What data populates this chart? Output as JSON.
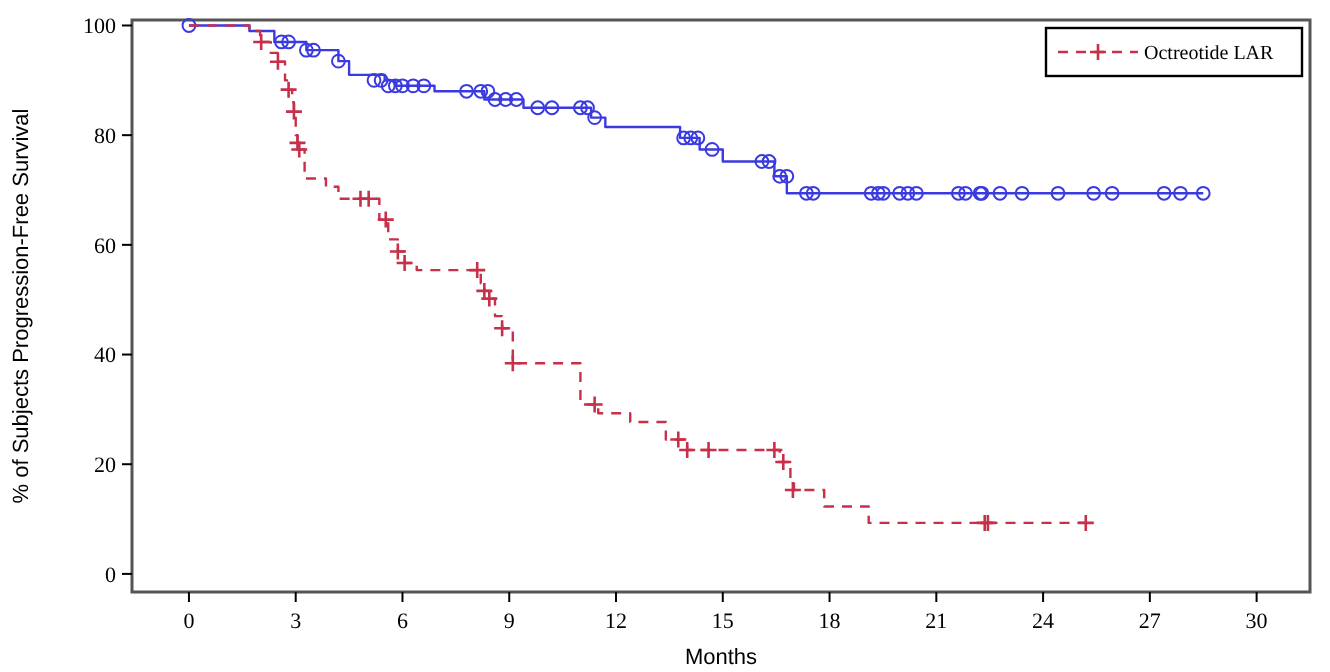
{
  "chart_data": {
    "type": "step",
    "xlabel": "Months",
    "ylabel": "% of Subjects Progression-Free Survival",
    "xlim": [
      -1.6,
      31.5
    ],
    "ylim": [
      -3.3,
      101
    ],
    "xticks": [
      0,
      3,
      6,
      9,
      12,
      15,
      18,
      21,
      24,
      27,
      30
    ],
    "yticks": [
      0,
      20,
      40,
      60,
      80,
      100
    ],
    "grid": false,
    "legend": "top right",
    "series": [
      {
        "color": "#3a3ae0",
        "line_style": "solid",
        "marker": "none",
        "x": [
          0,
          1.7,
          2.4,
          3.3,
          4.2,
          4.5,
          5.5,
          5.8,
          6.9,
          8.3,
          9.4,
          11.3,
          11.7,
          13.8,
          14.35,
          15.0,
          16.45,
          16.8,
          28.5
        ],
        "values": [
          100,
          99,
          97,
          95.5,
          93.5,
          91,
          90,
          89,
          88,
          86.5,
          85,
          83.2,
          81.5,
          79.5,
          77.4,
          75.2,
          72.5,
          69.4,
          69.4
        ]
      },
      {
        "type": "scatter",
        "color": "#3a3ae0",
        "marker": "circle",
        "x": [
          0,
          2.6,
          2.8,
          3.3,
          3.5,
          4.2,
          5.2,
          5.4,
          5.6,
          5.8,
          6.0,
          6.3,
          6.6,
          7.8,
          8.2,
          8.4,
          8.6,
          8.9,
          9.2,
          9.8,
          10.2,
          11.0,
          11.2,
          11.4,
          13.9,
          14.1,
          14.3,
          14.7,
          16.1,
          16.3,
          16.6,
          16.8,
          17.35,
          17.54,
          19.17,
          19.37,
          19.51,
          19.97,
          20.2,
          20.44,
          21.62,
          21.82,
          22.23,
          22.28,
          22.79,
          23.41,
          24.42,
          25.42,
          25.94,
          27.4,
          27.86,
          28.5
        ],
        "values": [
          100,
          97,
          97,
          95.5,
          95.5,
          93.5,
          90,
          90,
          89,
          89,
          89,
          89,
          89,
          88,
          88,
          88,
          86.5,
          86.5,
          86.5,
          85,
          85,
          85,
          85,
          83.2,
          79.5,
          79.5,
          79.5,
          77.4,
          75.2,
          75.2,
          72.5,
          72.5,
          69.4,
          69.4,
          69.4,
          69.4,
          69.4,
          69.4,
          69.4,
          69.4,
          69.4,
          69.4,
          69.4,
          69.4,
          69.4,
          69.4,
          69.4,
          69.4,
          69.4,
          69.4,
          69.4,
          69.4
        ]
      },
      {
        "name": "Octreotide LAR",
        "color": "#c8304a",
        "line_style": "dashed",
        "marker": "none",
        "x": [
          0,
          1.7,
          2.0,
          2.3,
          2.5,
          2.7,
          2.8,
          2.9,
          2.95,
          3.0,
          3.05,
          3.1,
          3.25,
          3.85,
          4.2,
          5.35,
          5.6,
          5.87,
          6.06,
          6.4,
          8.2,
          8.3,
          8.44,
          8.6,
          8.8,
          9.1,
          11.0,
          11.5,
          12.4,
          13.4,
          14.0,
          16.6,
          16.9,
          17.0,
          17.85,
          19.1,
          25.2
        ],
        "values": [
          100,
          99,
          97,
          95,
          93.4,
          90,
          88.3,
          86,
          84.3,
          80,
          78.6,
          77.4,
          72.1,
          70.6,
          68.4,
          64.6,
          61,
          58.8,
          56.7,
          55.4,
          53,
          51.6,
          50.2,
          47,
          44.8,
          38.4,
          30.9,
          29.3,
          27.7,
          24.5,
          22.6,
          20.4,
          17,
          15.3,
          12.3,
          9.3,
          9.3
        ]
      },
      {
        "type": "scatter",
        "color": "#c8304a",
        "marker": "cross",
        "x": [
          2.03,
          2.5,
          2.8,
          2.95,
          3.05,
          3.1,
          4.82,
          5.05,
          5.53,
          5.87,
          6.06,
          8.1,
          8.3,
          8.44,
          8.8,
          9.1,
          11.4,
          13.75,
          14.0,
          14.6,
          16.45,
          16.7,
          16.97,
          22.36,
          22.45,
          25.2
        ],
        "values": [
          97,
          93.4,
          88.3,
          84.3,
          78.6,
          77.4,
          68.4,
          68.4,
          64.6,
          58.8,
          56.7,
          55.4,
          51.6,
          50.2,
          44.8,
          38.4,
          30.9,
          24.5,
          22.6,
          22.6,
          22.6,
          20.4,
          15.3,
          9.3,
          9.3,
          9.3
        ]
      }
    ]
  }
}
